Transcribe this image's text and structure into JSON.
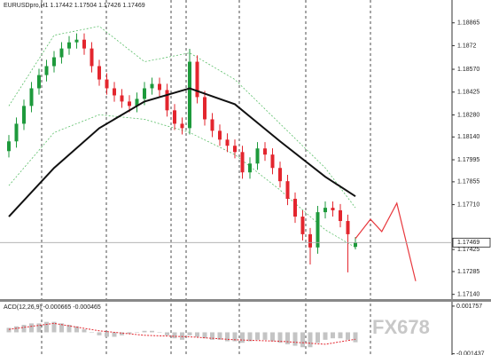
{
  "chart_data": {
    "type": "candlestick",
    "title": "EURUSDpro,H1",
    "open": [
      1.1805,
      1.18112,
      1.18224,
      1.18337,
      1.18449,
      1.18533,
      1.1859,
      1.18646,
      1.18702,
      1.18741,
      1.18758,
      1.18702,
      1.1859,
      1.18505,
      1.18449,
      1.18404,
      1.18365,
      1.18337,
      1.18382,
      1.18449,
      1.18477,
      1.18438,
      1.18309,
      1.18224,
      1.18196,
      1.18618,
      1.18393,
      1.18252,
      1.18179,
      1.18123,
      1.18084,
      1.18044,
      1.17915,
      1.17971,
      1.18067,
      1.18028,
      1.17943,
      1.17859,
      1.17747,
      1.17634,
      1.17522,
      1.17438,
      1.17662,
      1.1769,
      1.17674,
      1.17606,
      1.17442
    ],
    "high": [
      1.18152,
      1.18264,
      1.18377,
      1.18489,
      1.18573,
      1.1863,
      1.18686,
      1.18742,
      1.18781,
      1.18798,
      1.18798,
      1.18742,
      1.1863,
      1.18545,
      1.18489,
      1.18444,
      1.18405,
      1.18422,
      1.18489,
      1.18517,
      1.18517,
      1.18478,
      1.18349,
      1.18264,
      1.187,
      1.18658,
      1.18433,
      1.18292,
      1.18219,
      1.18163,
      1.18124,
      1.18084,
      1.18011,
      1.18107,
      1.18107,
      1.18068,
      1.17983,
      1.17899,
      1.17787,
      1.17674,
      1.17562,
      1.17702,
      1.1773,
      1.1773,
      1.17714,
      1.17646,
      1.17504
    ],
    "low": [
      1.1801,
      1.18072,
      1.18184,
      1.18297,
      1.18409,
      1.18493,
      1.1855,
      1.18606,
      1.18662,
      1.18701,
      1.18662,
      1.1855,
      1.18465,
      1.18409,
      1.18364,
      1.18325,
      1.18297,
      1.18297,
      1.18342,
      1.18409,
      1.18398,
      1.18269,
      1.18184,
      1.18156,
      1.18156,
      1.18353,
      1.18212,
      1.18139,
      1.18083,
      1.18044,
      1.18004,
      1.17875,
      1.17875,
      1.17931,
      1.17988,
      1.17903,
      1.17819,
      1.17707,
      1.17594,
      1.17482,
      1.1733,
      1.17398,
      1.17622,
      1.17634,
      1.17566,
      1.1728,
      1.17426
    ],
    "close": [
      1.18112,
      1.18224,
      1.18337,
      1.18449,
      1.18533,
      1.1859,
      1.18646,
      1.18702,
      1.18741,
      1.18758,
      1.18702,
      1.1859,
      1.18505,
      1.18449,
      1.18404,
      1.18365,
      1.18337,
      1.18382,
      1.18449,
      1.18477,
      1.18438,
      1.18309,
      1.18224,
      1.18196,
      1.18618,
      1.18393,
      1.18252,
      1.18179,
      1.18123,
      1.18084,
      1.18044,
      1.17915,
      1.17971,
      1.18067,
      1.18028,
      1.17943,
      1.17859,
      1.17747,
      1.17634,
      1.17522,
      1.17438,
      1.17662,
      1.1769,
      1.17674,
      1.17606,
      1.17522,
      1.17469
    ],
    "up_color": "#1e9a3c",
    "down_color": "#e3262e",
    "ylim": [
      1.1711,
      1.1901
    ],
    "yticks": [
      1.18865,
      1.1872,
      {
        "value": 1.1857,
        "label": "1.18570"
      },
      1.18425,
      {
        "value": 1.1828,
        "label": "1.18280"
      },
      {
        "value": 1.1814,
        "label": "1.18140"
      },
      1.17995,
      1.17855,
      {
        "value": 1.1771,
        "label": "1.17710"
      },
      1.17425,
      1.17285,
      {
        "value": 1.1714,
        "label": "1.17140"
      }
    ],
    "ma": {
      "color": "#111111",
      "x": [
        0,
        6,
        12,
        18,
        24,
        30,
        36,
        42,
        46
      ],
      "values": [
        1.17634,
        1.17943,
        1.18196,
        1.18365,
        1.18449,
        1.18348,
        1.18112,
        1.17887,
        1.17763
      ]
    },
    "upper": {
      "color": "#5cbf6a",
      "x": [
        0,
        6,
        12,
        18,
        24,
        30,
        36,
        42,
        46
      ],
      "values": [
        1.18337,
        1.18786,
        1.18843,
        1.18618,
        1.18674,
        1.18505,
        1.18224,
        1.17943,
        1.1769
      ]
    },
    "lower": {
      "color": "#5cbf6a",
      "x": [
        0,
        6,
        12,
        18,
        24,
        30,
        36,
        42,
        46
      ],
      "values": [
        1.17831,
        1.18168,
        1.18281,
        1.18252,
        1.18168,
        1.18028,
        1.17803,
        1.1755,
        1.17438
      ]
    },
    "forecast": {
      "color": "#e8383d",
      "x": [
        46,
        48,
        49.5,
        51.5,
        54
      ],
      "values": [
        1.17494,
        1.17617,
        1.17539,
        1.17719,
        1.17224
      ]
    },
    "indicator": {
      "name": "ACD(12,26,9)",
      "ylim": [
        -0.00152,
        0.00199
      ],
      "yticks": [
        0.001757,
        -0.001437
      ],
      "hist": [
        0.0003,
        0.0004,
        0.0005,
        0.0006,
        0.0006,
        0.0007,
        0.0007,
        0.0006,
        0.0005,
        0.0004,
        0.0002,
        0,
        -0.0002,
        -0.0003,
        -0.0003,
        -0.0002,
        -0.0001,
        0,
        0.0001,
        0.0001,
        0,
        -0.0002,
        -0.0004,
        -0.0005,
        -0.0002,
        -0.0003,
        -0.0004,
        -0.0005,
        -0.0005,
        -0.0006,
        -0.0006,
        -0.0007,
        -0.0006,
        -0.0005,
        -0.0005,
        -0.0006,
        -0.0007,
        -0.0008,
        -0.0009,
        -0.001,
        -0.001,
        -0.0007,
        -0.0005,
        -0.0004,
        -0.0004,
        -0.0005,
        -0.000665
      ],
      "signal": {
        "color": "#e3262e",
        "x": [
          0,
          6,
          12,
          18,
          24,
          30,
          36,
          42,
          46
        ],
        "values": [
          0.0002,
          0.0006,
          0.0001,
          -0.0002,
          -0.0003,
          -0.0005,
          -0.0006,
          -0.0008,
          -0.000465
        ]
      }
    },
    "watermark": "FX678"
  }
}
